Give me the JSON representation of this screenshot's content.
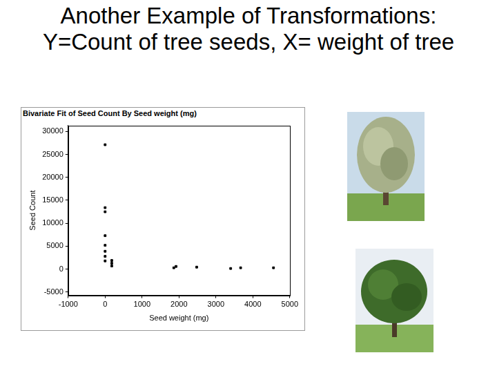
{
  "heading": "Another Example of Transformations: Y=Count of tree seeds, X= weight of tree",
  "chart_data": {
    "type": "scatter",
    "title": "Bivariate Fit of Seed Count By Seed weight (mg)",
    "x_label": "Seed weight (mg)",
    "y_label": "Seed Count",
    "x": [
      0,
      0,
      0,
      0,
      0,
      0,
      0,
      0,
      180,
      180,
      180,
      1860,
      1920,
      2480,
      3400,
      3670,
      4560
    ],
    "values": [
      27100,
      13400,
      12500,
      7300,
      5200,
      3900,
      2800,
      1800,
      1900,
      1300,
      700,
      300,
      600,
      450,
      150,
      300,
      300
    ],
    "color": "#000000",
    "marker": "square",
    "xlim": [
      -1000,
      5000
    ],
    "xticks": [
      -1000,
      0,
      1000,
      2000,
      3000,
      4000,
      5000
    ],
    "ylim": [
      -5700,
      31300
    ],
    "yticks": [
      -5000,
      0,
      5000,
      10000,
      15000,
      20000,
      25000,
      30000
    ],
    "grid": false
  }
}
